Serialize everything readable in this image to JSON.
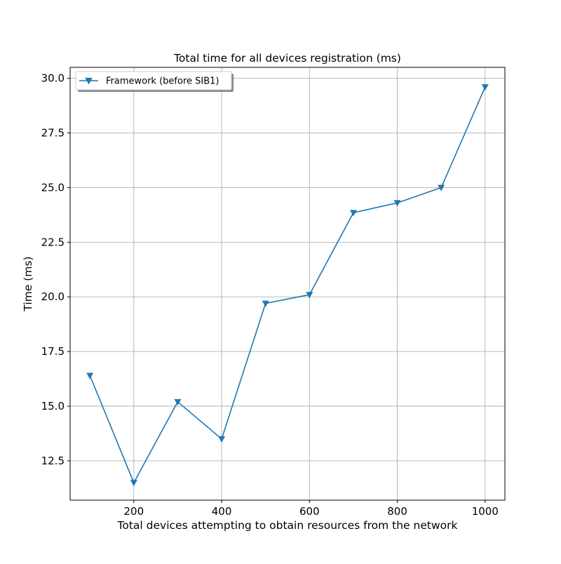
{
  "chart_data": {
    "type": "line",
    "title": "Total time for all devices registration (ms)",
    "xlabel": "Total devices attempting to obtain resources from the network",
    "ylabel": "Time (ms)",
    "xlim": [
      55,
      1045
    ],
    "ylim": [
      10.7,
      30.5
    ],
    "xticks": [
      200,
      400,
      600,
      800,
      1000
    ],
    "yticks": [
      12.5,
      15.0,
      17.5,
      20.0,
      22.5,
      25.0,
      27.5,
      30.0
    ],
    "xtick_labels": [
      "200",
      "400",
      "600",
      "800",
      "1000"
    ],
    "ytick_labels": [
      "12.5",
      "15.0",
      "17.5",
      "20.0",
      "22.5",
      "25.0",
      "27.5",
      "30.0"
    ],
    "grid": true,
    "legend_position": "top-left",
    "series": [
      {
        "name": "Framework (before SIB1)",
        "color": "#1f77b4",
        "marker": "triangle-down",
        "x": [
          100,
          200,
          300,
          400,
          500,
          600,
          700,
          800,
          900,
          1000
        ],
        "y": [
          16.4,
          11.5,
          15.2,
          13.5,
          19.7,
          20.1,
          23.85,
          24.3,
          25.0,
          29.6
        ]
      }
    ]
  }
}
